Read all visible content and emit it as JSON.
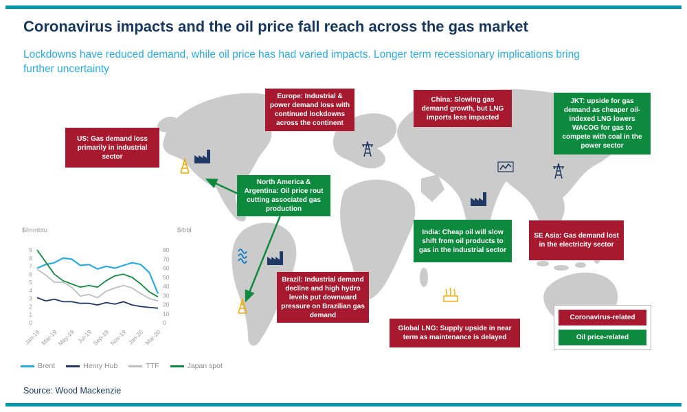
{
  "page": {
    "title": "Coronavirus impacts and the oil price fall reach across the gas market",
    "subtitle": "Lockdowns have reduced demand, while oil price has had varied impacts. Longer term recessionary implications bring further uncertainty",
    "source": "Source: Wood Mackenzie"
  },
  "colors": {
    "accent_teal": "#0097A9",
    "title_navy": "#17375E",
    "subtitle_blue": "#29ABE2",
    "coronavirus_red": "#A6192E",
    "oil_green": "#0E8A3E",
    "map_gray": "#CBCBCB",
    "icon_orange": "#F2A900",
    "icon_navy": "#1F3864",
    "icon_blue": "#0077C8"
  },
  "icons": {
    "oil-derrick-icon": "triangle lattice tower",
    "factory-icon": "sawtooth-roof factory with chimney",
    "power-tower-icon": "electricity transmission tower",
    "gas-ticker-icon": "small line-chart panel",
    "hydro-waves-icon": "three stacked waves",
    "lng-plant-icon": "tank with flare stacks",
    "arrow-icon": "green pointer arrow"
  },
  "annotations": [
    {
      "region": "US",
      "type": "coronavirus-related",
      "text": "US: Gas demand loss primarily in industrial sector"
    },
    {
      "region": "Europe",
      "type": "coronavirus-related",
      "text": "Europe: Industrial & power demand loss with continued lockdowns across the continent"
    },
    {
      "region": "China",
      "type": "coronavirus-related",
      "text": "China: Slowing gas demand growth, but LNG imports less impacted"
    },
    {
      "region": "JKT",
      "type": "oil-price-related",
      "text": "JKT: upside for gas demand as cheaper oil-indexed LNG lowers WACOG for gas to compete with coal in the power sector"
    },
    {
      "region": "North America & Argentina",
      "type": "oil-price-related",
      "text": "North America & Argentina: Oil price rout cutting associated gas production"
    },
    {
      "region": "India",
      "type": "oil-price-related",
      "text": "India: Cheap oil will slow shift from oil products to gas in the industrial sector"
    },
    {
      "region": "SE Asia",
      "type": "coronavirus-related",
      "text": "SE Asia: Gas demand lost in the electricity sector"
    },
    {
      "region": "Brazil",
      "type": "coronavirus-related",
      "text": "Brazil: Industrial demand decline and high hydro levels put downward pressure on Brazilian gas demand"
    },
    {
      "region": "Global LNG",
      "type": "coronavirus-related",
      "text": "Global LNG: Supply upside in near term as maintenance is delayed"
    }
  ],
  "map_key": {
    "items": [
      {
        "label": "Coronavirus-related",
        "color": "#A6192E"
      },
      {
        "label": "Oil price-related",
        "color": "#0E8A3E"
      }
    ]
  },
  "chart_data": {
    "type": "line",
    "title": "",
    "x": [
      "Jan-19",
      "Feb-19",
      "Mar-19",
      "Apr-19",
      "May-19",
      "Jun-19",
      "Jul-19",
      "Aug-19",
      "Sep-19",
      "Oct-19",
      "Nov-19",
      "Dec-19",
      "Jan-20",
      "Feb-20",
      "Mar-20"
    ],
    "x_ticklabels": [
      "Jan-19",
      "Mar-19",
      "May-19",
      "Jul-19",
      "Sep-19",
      "Nov-19",
      "Jan-20",
      "Mar-20"
    ],
    "x_ticklabel_every": 2,
    "ylabel_left": "$/mmbtu",
    "ylabel_right": "$/bbl",
    "ylim_left": [
      0,
      9
    ],
    "ylim_right": [
      0,
      80
    ],
    "yticks_left": [
      0,
      1,
      2,
      3,
      4,
      5,
      6,
      7,
      8,
      9
    ],
    "yticks_right": [
      0,
      10,
      20,
      30,
      40,
      50,
      60,
      70,
      80
    ],
    "grid": false,
    "legend_position": "bottom",
    "series": [
      {
        "name": "Brent",
        "axis": "right",
        "color": "#29ABE2",
        "values": [
          60,
          64,
          66,
          71,
          70,
          63,
          64,
          59,
          62,
          60,
          63,
          66,
          64,
          55,
          32
        ]
      },
      {
        "name": "Henry Hub",
        "axis": "left",
        "color": "#1F3864",
        "values": [
          3.1,
          2.7,
          2.9,
          2.6,
          2.6,
          2.4,
          2.4,
          2.2,
          2.5,
          2.3,
          2.6,
          2.2,
          2.0,
          1.9,
          1.8
        ]
      },
      {
        "name": "TTF",
        "axis": "left",
        "color": "#BFBFBF",
        "values": [
          6.6,
          5.9,
          5.0,
          5.0,
          4.4,
          3.3,
          3.5,
          3.1,
          3.9,
          4.3,
          4.6,
          4.3,
          3.6,
          3.0,
          2.7
        ]
      },
      {
        "name": "Japan spot",
        "axis": "left",
        "color": "#0E8A3E",
        "values": [
          9.0,
          7.5,
          6.0,
          5.2,
          4.8,
          4.4,
          4.6,
          4.4,
          5.2,
          5.8,
          6.0,
          5.6,
          4.8,
          3.8,
          3.2
        ]
      }
    ]
  }
}
